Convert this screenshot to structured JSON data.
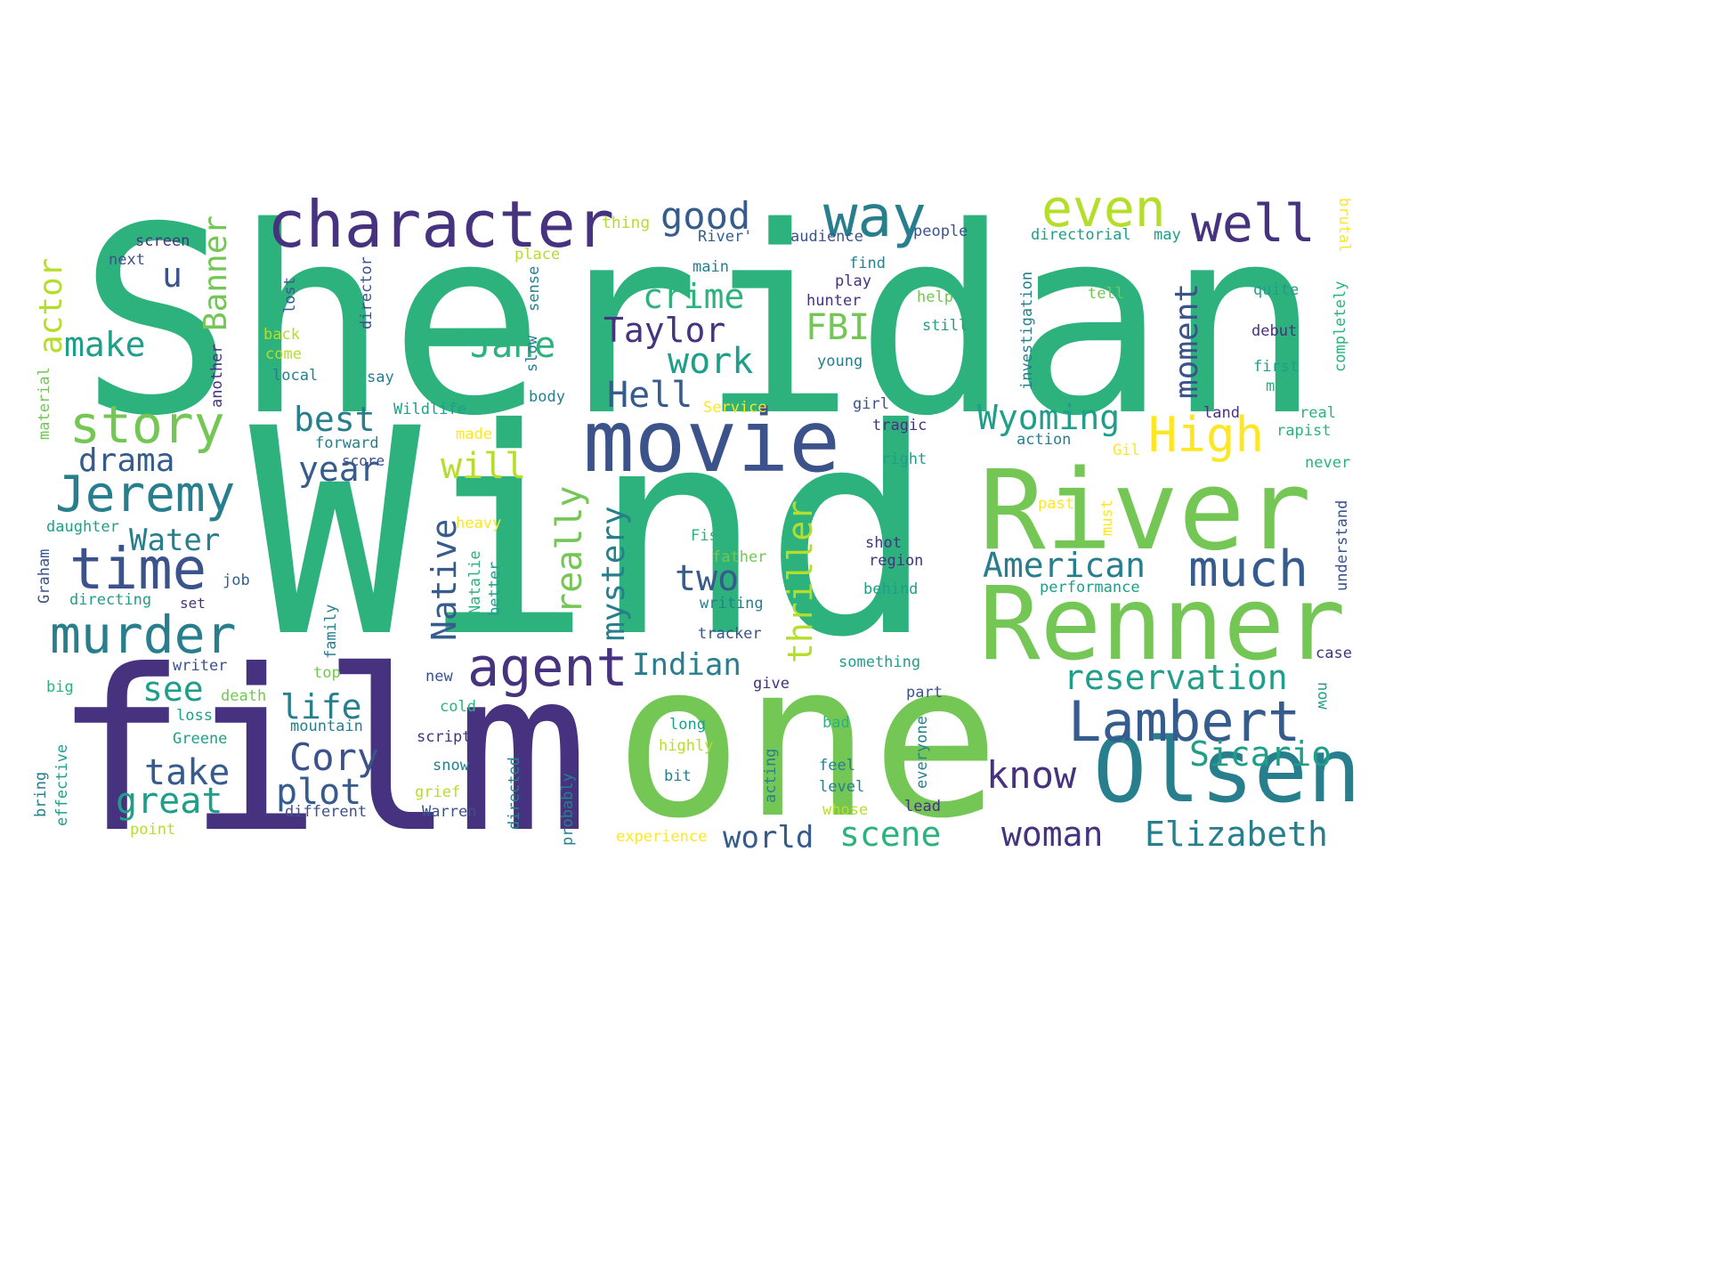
{
  "wordcloud": {
    "palette": {
      "purple": "#46327e",
      "indigo": "#3b528b",
      "blue": "#365c8d",
      "teal": "#277f8e",
      "cyan": "#1f9e89",
      "green": "#2db27d",
      "lime": "#74c655",
      "yellowgreen": "#b5de2b",
      "yellow": "#fde725"
    },
    "words": [
      {
        "id": "sheridan",
        "text": "Sheridan",
        "color": "green"
      },
      {
        "id": "wind",
        "text": "Wind",
        "color": "green"
      },
      {
        "id": "film",
        "text": "film",
        "color": "purple"
      },
      {
        "id": "one",
        "text": "one",
        "color": "lime"
      },
      {
        "id": "river",
        "text": "River",
        "color": "lime"
      },
      {
        "id": "renner",
        "text": "Renner",
        "color": "lime"
      },
      {
        "id": "olsen",
        "text": "Olsen",
        "color": "teal"
      },
      {
        "id": "movie",
        "text": "movie",
        "color": "indigo"
      },
      {
        "id": "character",
        "text": "character",
        "color": "purple"
      },
      {
        "id": "way",
        "text": "way",
        "color": "teal"
      },
      {
        "id": "even",
        "text": "even",
        "color": "yellowgreen"
      },
      {
        "id": "well",
        "text": "well",
        "color": "purple"
      },
      {
        "id": "good",
        "text": "good",
        "color": "blue"
      },
      {
        "id": "lambert",
        "text": "Lambert",
        "color": "blue"
      },
      {
        "id": "jeremy",
        "text": "Jeremy",
        "color": "teal"
      },
      {
        "id": "time",
        "text": "time",
        "color": "indigo"
      },
      {
        "id": "murder",
        "text": "murder",
        "color": "teal"
      },
      {
        "id": "story",
        "text": "story",
        "color": "lime"
      },
      {
        "id": "agent",
        "text": "agent",
        "color": "purple"
      },
      {
        "id": "high",
        "text": "High",
        "color": "yellow"
      },
      {
        "id": "much",
        "text": "much",
        "color": "blue"
      },
      {
        "id": "american",
        "text": "American",
        "color": "teal"
      },
      {
        "id": "reservation",
        "text": "reservation",
        "color": "cyan"
      },
      {
        "id": "sicario",
        "text": "Sicario",
        "color": "cyan"
      },
      {
        "id": "elizabeth",
        "text": "Elizabeth",
        "color": "teal"
      },
      {
        "id": "woman",
        "text": "woman",
        "color": "purple"
      },
      {
        "id": "scene",
        "text": "scene",
        "color": "green"
      },
      {
        "id": "world",
        "text": "world",
        "color": "blue"
      },
      {
        "id": "know",
        "text": "know",
        "color": "purple"
      },
      {
        "id": "wyoming",
        "text": "Wyoming",
        "color": "cyan"
      },
      {
        "id": "crime",
        "text": "crime",
        "color": "green"
      },
      {
        "id": "taylor",
        "text": "Taylor",
        "color": "purple"
      },
      {
        "id": "fbi",
        "text": "FBI",
        "color": "lime"
      },
      {
        "id": "work",
        "text": "work",
        "color": "cyan"
      },
      {
        "id": "jane",
        "text": "Jane",
        "color": "green"
      },
      {
        "id": "hell",
        "text": "Hell",
        "color": "blue"
      },
      {
        "id": "make",
        "text": "make",
        "color": "cyan"
      },
      {
        "id": "best",
        "text": "best",
        "color": "teal"
      },
      {
        "id": "drama",
        "text": "drama",
        "color": "blue"
      },
      {
        "id": "year",
        "text": "year",
        "color": "blue"
      },
      {
        "id": "will",
        "text": "will",
        "color": "yellowgreen"
      },
      {
        "id": "water",
        "text": "Water",
        "color": "teal"
      },
      {
        "id": "two",
        "text": "two",
        "color": "blue"
      },
      {
        "id": "indian",
        "text": "Indian",
        "color": "teal"
      },
      {
        "id": "see",
        "text": "see",
        "color": "cyan"
      },
      {
        "id": "life",
        "text": "life",
        "color": "teal"
      },
      {
        "id": "cory",
        "text": "Cory",
        "color": "indigo"
      },
      {
        "id": "take",
        "text": "take",
        "color": "blue"
      },
      {
        "id": "plot",
        "text": "plot",
        "color": "blue"
      },
      {
        "id": "great",
        "text": "great",
        "color": "cyan"
      },
      {
        "id": "u",
        "text": "u",
        "color": "indigo"
      },
      {
        "id": "banner",
        "text": "Banner",
        "color": "lime"
      },
      {
        "id": "actor",
        "text": "actor",
        "color": "yellowgreen"
      },
      {
        "id": "native",
        "text": "Native",
        "color": "blue"
      },
      {
        "id": "really",
        "text": "really",
        "color": "lime"
      },
      {
        "id": "mystery",
        "text": "mystery",
        "color": "teal"
      },
      {
        "id": "thriller",
        "text": "thriller",
        "color": "yellowgreen"
      },
      {
        "id": "moment",
        "text": "moment",
        "color": "indigo"
      },
      {
        "id": "screen",
        "text": "screen",
        "color": "purple"
      },
      {
        "id": "next",
        "text": "next",
        "color": "indigo"
      },
      {
        "id": "thing",
        "text": "thing",
        "color": "yellowgreen"
      },
      {
        "id": "river-q",
        "text": "River'",
        "color": "blue"
      },
      {
        "id": "audience",
        "text": "audience",
        "color": "indigo"
      },
      {
        "id": "people",
        "text": "people",
        "color": "indigo"
      },
      {
        "id": "directorial",
        "text": "directorial",
        "color": "cyan"
      },
      {
        "id": "may",
        "text": "may",
        "color": "cyan"
      },
      {
        "id": "place",
        "text": "place",
        "color": "yellowgreen"
      },
      {
        "id": "main",
        "text": "main",
        "color": "teal"
      },
      {
        "id": "find",
        "text": "find",
        "color": "teal"
      },
      {
        "id": "play",
        "text": "play",
        "color": "purple"
      },
      {
        "id": "hunter",
        "text": "hunter",
        "color": "purple"
      },
      {
        "id": "help",
        "text": "help",
        "color": "lime"
      },
      {
        "id": "tell",
        "text": "tell",
        "color": "lime"
      },
      {
        "id": "quite",
        "text": "quite",
        "color": "cyan"
      },
      {
        "id": "still",
        "text": "still",
        "color": "cyan"
      },
      {
        "id": "debut",
        "text": "debut",
        "color": "purple"
      },
      {
        "id": "back",
        "text": "back",
        "color": "yellowgreen"
      },
      {
        "id": "come",
        "text": "come",
        "color": "yellowgreen"
      },
      {
        "id": "local",
        "text": "local",
        "color": "teal"
      },
      {
        "id": "say",
        "text": "say",
        "color": "teal"
      },
      {
        "id": "young",
        "text": "young",
        "color": "teal"
      },
      {
        "id": "first",
        "text": "first",
        "color": "cyan"
      },
      {
        "id": "man",
        "text": "man",
        "color": "green"
      },
      {
        "id": "wildlife",
        "text": "Wildlife",
        "color": "cyan"
      },
      {
        "id": "service",
        "text": "Service",
        "color": "yellow"
      },
      {
        "id": "girl",
        "text": "girl",
        "color": "indigo"
      },
      {
        "id": "land",
        "text": "land",
        "color": "purple"
      },
      {
        "id": "real",
        "text": "real",
        "color": "green"
      },
      {
        "id": "forward",
        "text": "forward",
        "color": "teal"
      },
      {
        "id": "made",
        "text": "made",
        "color": "yellow"
      },
      {
        "id": "tragic",
        "text": "tragic",
        "color": "purple"
      },
      {
        "id": "action",
        "text": "action",
        "color": "teal"
      },
      {
        "id": "gil",
        "text": "Gil",
        "color": "yellow"
      },
      {
        "id": "rapist",
        "text": "rapist",
        "color": "green"
      },
      {
        "id": "score",
        "text": "score",
        "color": "indigo"
      },
      {
        "id": "right",
        "text": "right",
        "color": "cyan"
      },
      {
        "id": "never",
        "text": "never",
        "color": "green"
      },
      {
        "id": "past",
        "text": "past",
        "color": "yellow"
      },
      {
        "id": "daughter",
        "text": "daughter",
        "color": "cyan"
      },
      {
        "id": "heavy",
        "text": "heavy",
        "color": "yellow"
      },
      {
        "id": "fish",
        "text": "Fish",
        "color": "green"
      },
      {
        "id": "shot",
        "text": "shot",
        "color": "purple"
      },
      {
        "id": "father",
        "text": "father",
        "color": "lime"
      },
      {
        "id": "region",
        "text": "region",
        "color": "purple"
      },
      {
        "id": "job",
        "text": "job",
        "color": "blue"
      },
      {
        "id": "behind",
        "text": "behind",
        "color": "cyan"
      },
      {
        "id": "performance",
        "text": "performance",
        "color": "cyan"
      },
      {
        "id": "directing",
        "text": "directing",
        "color": "cyan"
      },
      {
        "id": "set",
        "text": "set",
        "color": "purple"
      },
      {
        "id": "writing",
        "text": "writing",
        "color": "teal"
      },
      {
        "id": "tracker",
        "text": "tracker",
        "color": "indigo"
      },
      {
        "id": "case",
        "text": "case",
        "color": "purple"
      },
      {
        "id": "writer",
        "text": "writer",
        "color": "indigo"
      },
      {
        "id": "top",
        "text": "top",
        "color": "lime"
      },
      {
        "id": "new",
        "text": "new",
        "color": "indigo"
      },
      {
        "id": "something",
        "text": "something",
        "color": "cyan"
      },
      {
        "id": "big",
        "text": "big",
        "color": "green"
      },
      {
        "id": "death",
        "text": "death",
        "color": "lime"
      },
      {
        "id": "give",
        "text": "give",
        "color": "purple"
      },
      {
        "id": "part",
        "text": "part",
        "color": "indigo"
      },
      {
        "id": "loss",
        "text": "loss",
        "color": "cyan"
      },
      {
        "id": "mountain",
        "text": "mountain",
        "color": "teal"
      },
      {
        "id": "cold",
        "text": "cold",
        "color": "green"
      },
      {
        "id": "long",
        "text": "long",
        "color": "cyan"
      },
      {
        "id": "bad",
        "text": "bad",
        "color": "green"
      },
      {
        "id": "greene",
        "text": "Greene",
        "color": "cyan"
      },
      {
        "id": "script",
        "text": "script",
        "color": "purple"
      },
      {
        "id": "highly",
        "text": "highly",
        "color": "yellowgreen"
      },
      {
        "id": "snow",
        "text": "snow",
        "color": "teal"
      },
      {
        "id": "feel",
        "text": "feel",
        "color": "teal"
      },
      {
        "id": "bit",
        "text": "bit",
        "color": "teal"
      },
      {
        "id": "level",
        "text": "level",
        "color": "teal"
      },
      {
        "id": "grief",
        "text": "grief",
        "color": "yellowgreen"
      },
      {
        "id": "different",
        "text": "different",
        "color": "indigo"
      },
      {
        "id": "warren",
        "text": "Warren",
        "color": "indigo"
      },
      {
        "id": "whose",
        "text": "whose",
        "color": "yellowgreen"
      },
      {
        "id": "lead",
        "text": "lead",
        "color": "purple"
      },
      {
        "id": "point",
        "text": "point",
        "color": "yellowgreen"
      },
      {
        "id": "experience",
        "text": "experience",
        "color": "yellow"
      },
      {
        "id": "lost",
        "text": "lost",
        "color": "blue"
      },
      {
        "id": "director",
        "text": "director",
        "color": "indigo"
      },
      {
        "id": "sense",
        "text": "sense",
        "color": "teal"
      },
      {
        "id": "slow",
        "text": "slow",
        "color": "teal"
      },
      {
        "id": "body",
        "text": "body",
        "color": "teal"
      },
      {
        "id": "another",
        "text": "another",
        "color": "purple"
      },
      {
        "id": "material",
        "text": "material",
        "color": "lime"
      },
      {
        "id": "investigation",
        "text": "investigation",
        "color": "teal"
      },
      {
        "id": "brutal",
        "text": "brutal",
        "color": "yellow"
      },
      {
        "id": "completely",
        "text": "completely",
        "color": "green"
      },
      {
        "id": "understand",
        "text": "understand",
        "color": "indigo"
      },
      {
        "id": "must",
        "text": "must",
        "color": "yellow"
      },
      {
        "id": "now",
        "text": "now",
        "color": "cyan"
      },
      {
        "id": "graham",
        "text": "Graham",
        "color": "indigo"
      },
      {
        "id": "natalie",
        "text": "Natalie",
        "color": "green"
      },
      {
        "id": "better",
        "text": "better",
        "color": "cyan"
      },
      {
        "id": "family",
        "text": "family",
        "color": "teal"
      },
      {
        "id": "bring",
        "text": "bring",
        "color": "teal"
      },
      {
        "id": "effective",
        "text": "effective",
        "color": "cyan"
      },
      {
        "id": "directed",
        "text": "directed",
        "color": "teal"
      },
      {
        "id": "probably",
        "text": "probably",
        "color": "teal"
      },
      {
        "id": "acting",
        "text": "acting",
        "color": "teal"
      },
      {
        "id": "everyone",
        "text": "everyone",
        "color": "teal"
      }
    ]
  }
}
